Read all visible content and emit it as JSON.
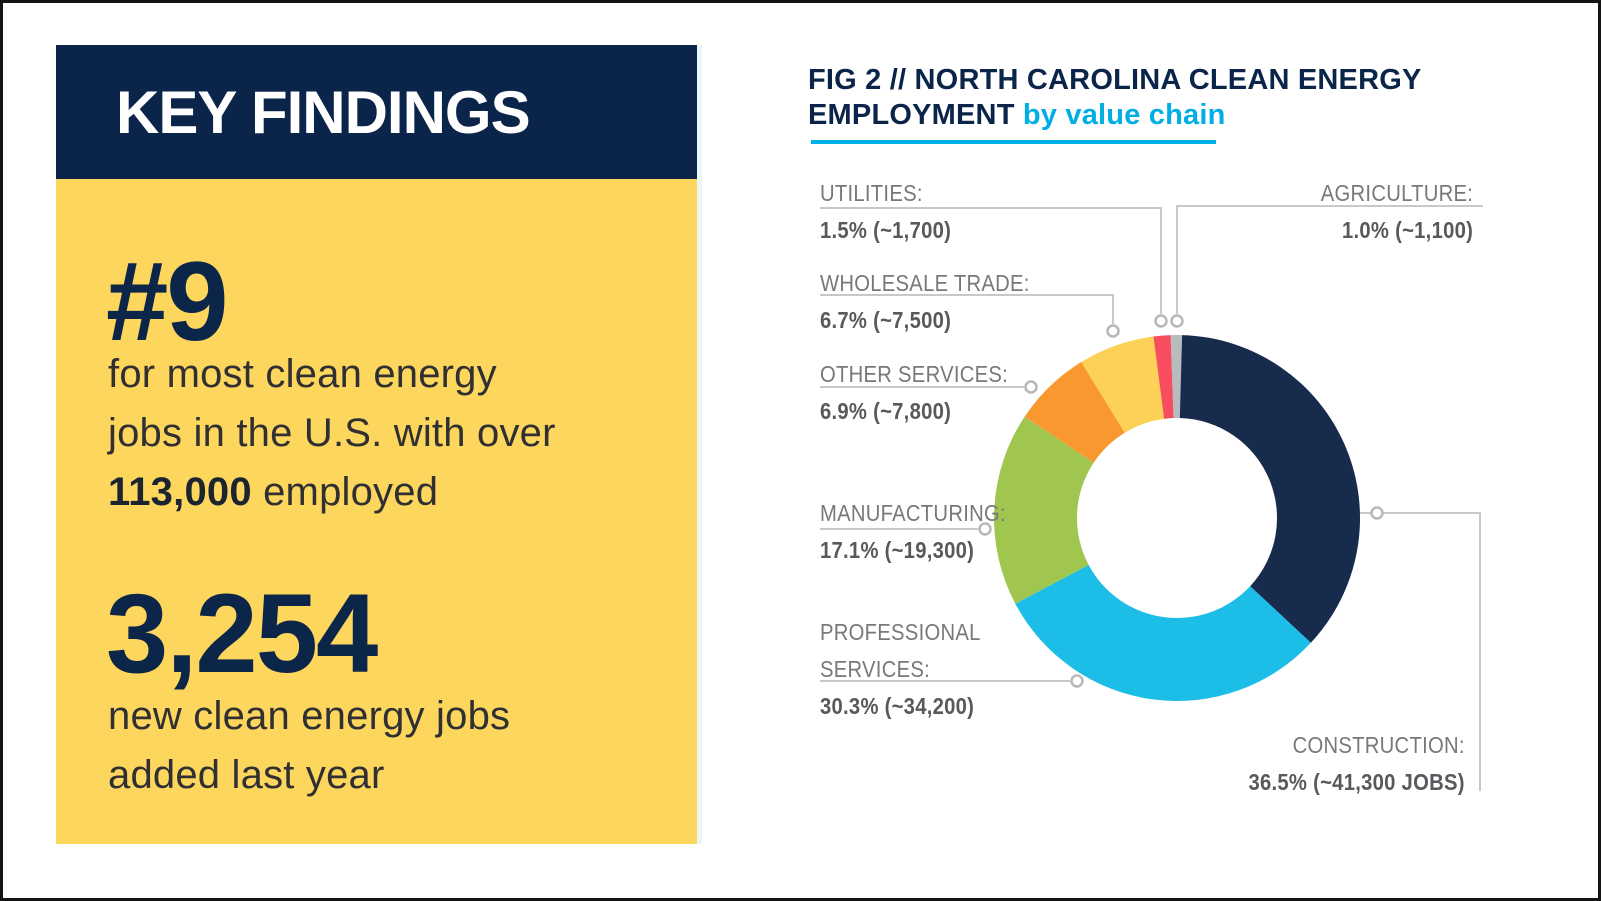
{
  "key_findings": {
    "header": "KEY FINDINGS",
    "stat1": {
      "number": "#9",
      "line1": "for most clean energy",
      "line2": "jobs in the U.S. with over",
      "bold": "113,000",
      "after": " employed"
    },
    "stat2": {
      "number": "3,254",
      "line1": "new clean energy jobs",
      "line2": "added last year"
    }
  },
  "chart": {
    "title_line1": "FIG 2 // NORTH CAROLINA CLEAN ENERGY",
    "title_line2_dark": "EMPLOYMENT",
    "title_line2_accent": "by value chain",
    "labels": {
      "utilities": {
        "n1": "UTILITIES:",
        "v": "1.5% (~1,700)"
      },
      "wholesale": {
        "n1": "WHOLESALE TRADE:",
        "v": "6.7% (~7,500)"
      },
      "other": {
        "n1": "OTHER SERVICES:",
        "v": "6.9% (~7,800)"
      },
      "manufacturing": {
        "n1": "MANUFACTURING:",
        "v": "17.1% (~19,300)"
      },
      "professional": {
        "n1": "PROFESSIONAL",
        "n2": "SERVICES:",
        "v": "30.3% (~34,200)"
      },
      "agriculture": {
        "n1": "AGRICULTURE:",
        "v": "1.0% (~1,100)"
      },
      "construction": {
        "n1": "CONSTRUCTION:",
        "v": "36.5% (~41,300 JOBS)"
      }
    }
  },
  "chart_data": {
    "type": "pie",
    "variant": "donut",
    "title": "FIG 2 // NORTH CAROLINA CLEAN ENERGY EMPLOYMENT by value chain",
    "direction": "clockwise",
    "start_at": "top",
    "segments": [
      {
        "label": "Agriculture",
        "pct": 1.0,
        "jobs_approx": "~1,100",
        "color": "#b9bcbe"
      },
      {
        "label": "Construction",
        "pct": 36.5,
        "jobs_approx": "~41,300 JOBS",
        "color": "#172b4d"
      },
      {
        "label": "Professional Services",
        "pct": 30.3,
        "jobs_approx": "~34,200",
        "color": "#1cbee7"
      },
      {
        "label": "Manufacturing",
        "pct": 17.1,
        "jobs_approx": "~19,300",
        "color": "#a0c650"
      },
      {
        "label": "Other Services",
        "pct": 6.9,
        "jobs_approx": "~7,800",
        "color": "#f9982e"
      },
      {
        "label": "Wholesale Trade",
        "pct": 6.7,
        "jobs_approx": "~7,500",
        "color": "#fcd155"
      },
      {
        "label": "Utilities",
        "pct": 1.5,
        "jobs_approx": "~1,700",
        "color": "#f84d5e"
      }
    ]
  },
  "colors": {
    "navy": "#0b2449",
    "panel_yellow": "#fdd65e",
    "accent_cyan": "#00aee6",
    "label_gray": "#77787b",
    "value_gray": "#58595c",
    "leader_gray": "#c7c8ca",
    "body_text": "#303032"
  }
}
